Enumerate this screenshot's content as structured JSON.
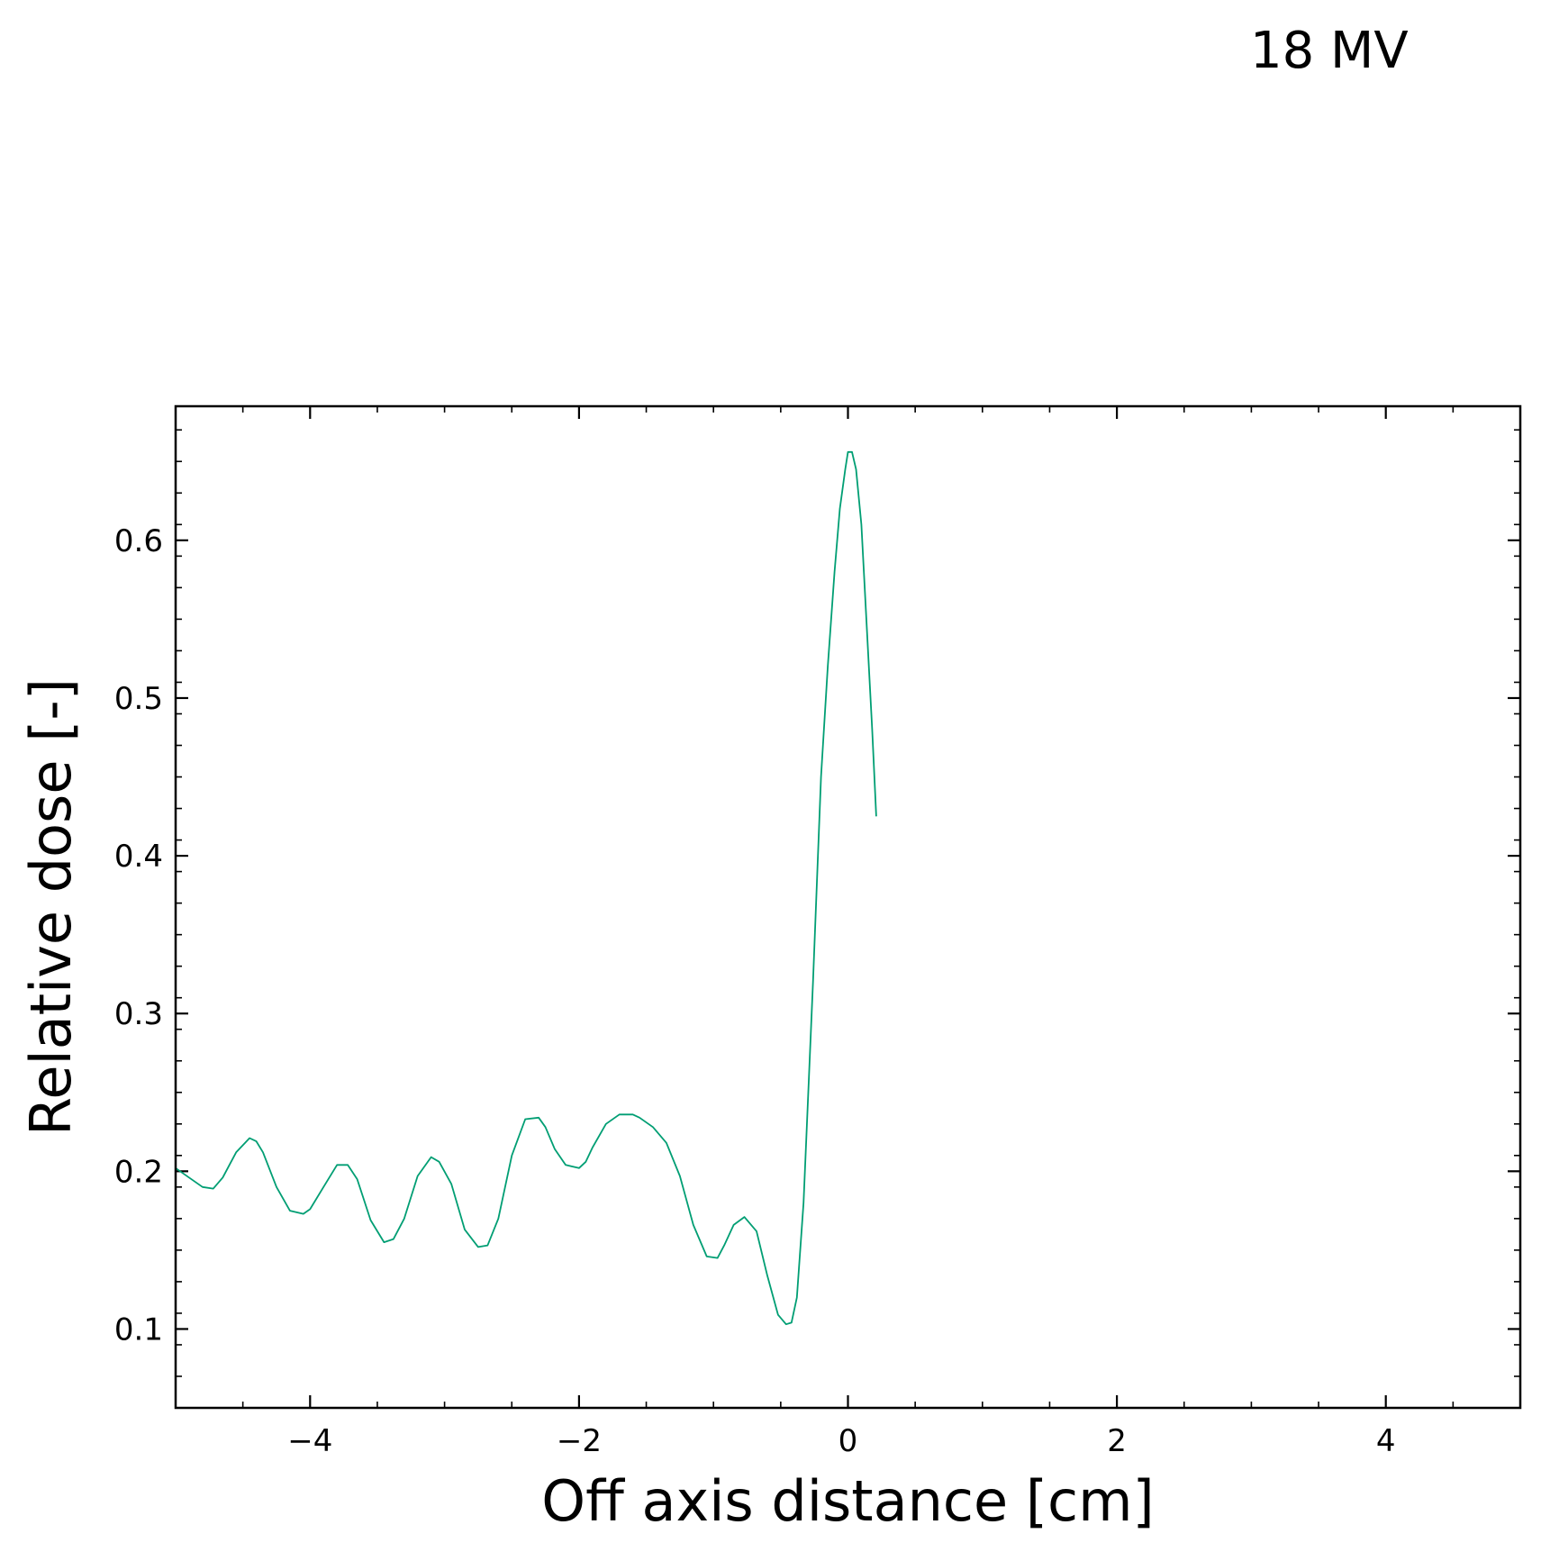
{
  "annotation": "18 MV",
  "chart_data": {
    "type": "line",
    "title": "",
    "annotation": "18 MV",
    "xlabel": "Off axis distance [cm]",
    "ylabel": "Relative dose [-]",
    "xlim": [
      -5,
      5
    ],
    "ylim": [
      0.05,
      0.685
    ],
    "xticks": [
      -4,
      -2,
      0,
      2,
      4
    ],
    "xtick_labels": [
      "−4",
      "−2",
      "0",
      "2",
      "4"
    ],
    "yticks": [
      0.1,
      0.2,
      0.3,
      0.4,
      0.5,
      0.6
    ],
    "ytick_labels": [
      "0.1",
      "0.2",
      "0.3",
      "0.4",
      "0.5",
      "0.6"
    ],
    "grid": false,
    "legend": "none",
    "series": [
      {
        "color": "#009e73",
        "x": [
          -5.0,
          -4.9,
          -4.8,
          -4.72,
          -4.65,
          -4.55,
          -4.45,
          -4.4,
          -4.35,
          -4.25,
          -4.15,
          -4.05,
          -4.0,
          -3.9,
          -3.8,
          -3.72,
          -3.65,
          -3.55,
          -3.45,
          -3.38,
          -3.3,
          -3.2,
          -3.1,
          -3.04,
          -2.95,
          -2.85,
          -2.75,
          -2.68,
          -2.6,
          -2.5,
          -2.4,
          -2.3,
          -2.25,
          -2.18,
          -2.1,
          -2.0,
          -1.95,
          -1.9,
          -1.8,
          -1.7,
          -1.6,
          -1.55,
          -1.45,
          -1.35,
          -1.25,
          -1.15,
          -1.05,
          -0.97,
          -0.92,
          -0.85,
          -0.77,
          -0.68,
          -0.6,
          -0.52,
          -0.46,
          -0.42,
          -0.38,
          -0.33,
          -0.26,
          -0.2,
          -0.15,
          -0.1,
          -0.06,
          -0.02,
          0.0,
          0.03,
          0.06,
          0.1,
          0.14,
          0.18,
          0.21
        ],
        "y": [
          0.202,
          0.196,
          0.19,
          0.189,
          0.196,
          0.212,
          0.221,
          0.219,
          0.212,
          0.19,
          0.175,
          0.173,
          0.176,
          0.19,
          0.204,
          0.204,
          0.195,
          0.169,
          0.155,
          0.157,
          0.17,
          0.197,
          0.209,
          0.206,
          0.192,
          0.163,
          0.152,
          0.153,
          0.17,
          0.21,
          0.233,
          0.234,
          0.228,
          0.214,
          0.204,
          0.202,
          0.206,
          0.215,
          0.23,
          0.236,
          0.236,
          0.234,
          0.228,
          0.218,
          0.197,
          0.166,
          0.146,
          0.145,
          0.153,
          0.166,
          0.171,
          0.162,
          0.134,
          0.109,
          0.103,
          0.104,
          0.12,
          0.18,
          0.32,
          0.45,
          0.52,
          0.58,
          0.62,
          0.645,
          0.656,
          0.656,
          0.645,
          0.61,
          0.545,
          0.48,
          0.425
        ]
      }
    ]
  }
}
